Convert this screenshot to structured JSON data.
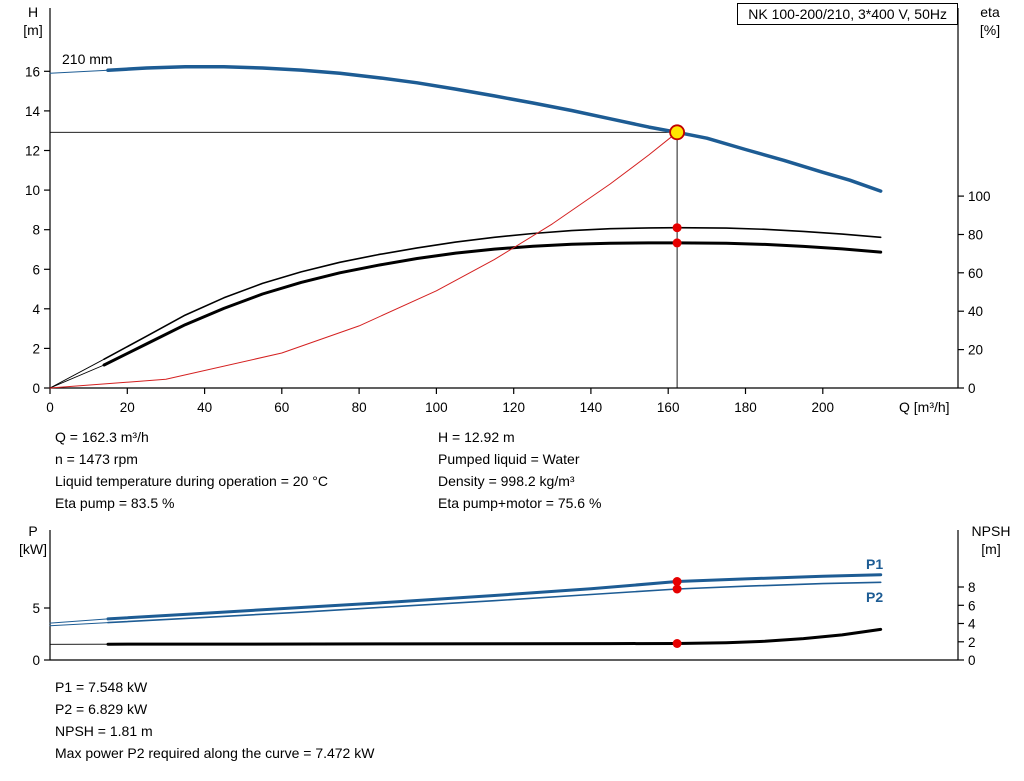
{
  "header": {
    "title_box": "NK 100-200/210, 3*400 V, 50Hz"
  },
  "colors": {
    "curve_blue": "#1d5c94",
    "curve_black": "#000000",
    "curve_red": "#d42020",
    "dot_red": "#e60000",
    "duty_fill": "#ffe600",
    "duty_stroke": "#c00000"
  },
  "top_chart": {
    "y_left_title": "H",
    "y_left_unit": "[m]",
    "y_right_title": "eta",
    "y_right_unit": "[%]",
    "x_title": "Q [m³/h]",
    "impeller_label": "210 mm"
  },
  "bottom_chart": {
    "y_left_title": "P",
    "y_left_unit": "[kW]",
    "y_right_title": "NPSH",
    "y_right_unit": "[m]",
    "p1_label": "P1",
    "p2_label": "P2"
  },
  "operating_info": {
    "left": [
      "Q = 162.3 m³/h",
      "n = 1473 rpm",
      "Liquid temperature during operation = 20 °C",
      "Eta pump = 83.5 %"
    ],
    "right": [
      "H = 12.92 m",
      "Pumped liquid = Water",
      "Density = 998.2 kg/m³",
      "Eta pump+motor = 75.6 %"
    ]
  },
  "power_info": [
    "P1 = 7.548 kW",
    "P2 = 6.829 kW",
    "NPSH = 1.81 m",
    "Max power P2 required along the curve = 7.472 kW"
  ],
  "chart_data": [
    {
      "type": "line",
      "title": "NK 100-200/210, 3*400 V, 50Hz",
      "xlabel": "Q [m³/h]",
      "ylabel_left": "H [m]",
      "ylabel_right": "eta [%]",
      "xlim": [
        0,
        235
      ],
      "ylim_left": [
        0,
        19.2
      ],
      "ylim_right": [
        0,
        198
      ],
      "x_ticks": [
        0,
        20,
        40,
        60,
        80,
        100,
        120,
        140,
        160,
        180,
        200
      ],
      "y_ticks_left": [
        0,
        2,
        4,
        6,
        8,
        10,
        12,
        14,
        16
      ],
      "y_ticks_right": [
        0,
        20,
        40,
        60,
        80,
        100
      ],
      "grid": false,
      "crosshair": {
        "q": 162.3,
        "value": 12.92,
        "axis": "left"
      },
      "series": [
        {
          "name": "head-curve-lead",
          "axis": "left",
          "color": "blue",
          "width": 1,
          "points": [
            [
              0,
              15.9
            ],
            [
              15,
              16.05
            ]
          ]
        },
        {
          "name": "head-curve-210mm",
          "axis": "left",
          "color": "blue",
          "width": 3.5,
          "points": [
            [
              15,
              16.05
            ],
            [
              25,
              16.17
            ],
            [
              35,
              16.23
            ],
            [
              45,
              16.23
            ],
            [
              55,
              16.17
            ],
            [
              65,
              16.06
            ],
            [
              75,
              15.9
            ],
            [
              85,
              15.68
            ],
            [
              95,
              15.42
            ],
            [
              105,
              15.1
            ],
            [
              115,
              14.76
            ],
            [
              125,
              14.4
            ],
            [
              135,
              14.02
            ],
            [
              145,
              13.6
            ],
            [
              155,
              13.18
            ],
            [
              162.3,
              12.92
            ],
            [
              170,
              12.62
            ],
            [
              180,
              12.05
            ],
            [
              190,
              11.5
            ],
            [
              200,
              10.9
            ],
            [
              207,
              10.5
            ],
            [
              215,
              9.95
            ]
          ]
        },
        {
          "name": "eta-pump-lead",
          "axis": "right",
          "color": "black",
          "width": 0.9,
          "points": [
            [
              0,
              0
            ],
            [
              14,
              15
            ]
          ]
        },
        {
          "name": "eta-pump-curve",
          "axis": "right",
          "color": "black",
          "width": 1.6,
          "points": [
            [
              14,
              15
            ],
            [
              25,
              27
            ],
            [
              35,
              38
            ],
            [
              45,
              47
            ],
            [
              55,
              54.5
            ],
            [
              65,
              60.5
            ],
            [
              75,
              65.5
            ],
            [
              85,
              69.5
            ],
            [
              95,
              73
            ],
            [
              105,
              76
            ],
            [
              115,
              78.5
            ],
            [
              125,
              80.5
            ],
            [
              135,
              82
            ],
            [
              145,
              83
            ],
            [
              155,
              83.4
            ],
            [
              162.3,
              83.5
            ],
            [
              175,
              83.3
            ],
            [
              185,
              82.7
            ],
            [
              195,
              81.6
            ],
            [
              205,
              80.2
            ],
            [
              215,
              78.5
            ]
          ]
        },
        {
          "name": "eta-pump-motor-lead",
          "axis": "right",
          "color": "black",
          "width": 0.9,
          "points": [
            [
              0,
              0
            ],
            [
              14,
              12
            ]
          ]
        },
        {
          "name": "eta-pump-motor-curve",
          "axis": "right",
          "color": "black",
          "width": 3,
          "points": [
            [
              14,
              12
            ],
            [
              25,
              23
            ],
            [
              35,
              33
            ],
            [
              45,
              41.5
            ],
            [
              55,
              49
            ],
            [
              65,
              55
            ],
            [
              75,
              60
            ],
            [
              85,
              64
            ],
            [
              95,
              67.5
            ],
            [
              105,
              70.3
            ],
            [
              115,
              72.4
            ],
            [
              125,
              73.9
            ],
            [
              135,
              74.9
            ],
            [
              145,
              75.4
            ],
            [
              155,
              75.6
            ],
            [
              162.3,
              75.6
            ],
            [
              175,
              75.4
            ],
            [
              185,
              74.8
            ],
            [
              195,
              73.8
            ],
            [
              205,
              72.5
            ],
            [
              215,
              70.8
            ]
          ]
        },
        {
          "name": "system-curve",
          "axis": "left",
          "color": "red",
          "width": 1,
          "points": [
            [
              0,
              0
            ],
            [
              30,
              0.44
            ],
            [
              60,
              1.77
            ],
            [
              80,
              3.14
            ],
            [
              100,
              4.91
            ],
            [
              115,
              6.49
            ],
            [
              130,
              8.29
            ],
            [
              145,
              10.31
            ],
            [
              155,
              11.78
            ],
            [
              162.3,
              12.92
            ]
          ]
        }
      ],
      "markers": [
        {
          "name": "duty-point",
          "style": "duty",
          "axis": "left",
          "q": 162.3,
          "value": 12.92
        },
        {
          "name": "eta-pump-point",
          "style": "dot",
          "axis": "right",
          "q": 162.3,
          "value": 83.5
        },
        {
          "name": "eta-pump-motor-point",
          "style": "dot",
          "axis": "right",
          "q": 162.3,
          "value": 75.6
        }
      ]
    },
    {
      "type": "line",
      "title": "Power and NPSH curves",
      "xlabel": "Q [m³/h]",
      "ylabel_left": "P [kW]",
      "ylabel_right": "NPSH [m]",
      "xlim": [
        0,
        235
      ],
      "ylim_left": [
        0,
        12.5
      ],
      "ylim_right": [
        0,
        14.25
      ],
      "x_ticks": [],
      "y_ticks_left": [
        0,
        5
      ],
      "y_ticks_right": [
        0,
        2,
        4,
        6,
        8
      ],
      "grid": false,
      "crosshair": null,
      "series": [
        {
          "name": "p1-curve-lead",
          "axis": "left",
          "color": "blue",
          "width": 1,
          "points": [
            [
              0,
              3.55
            ],
            [
              15,
              3.95
            ]
          ]
        },
        {
          "name": "p1-curve",
          "axis": "left",
          "color": "blue",
          "width": 3,
          "points": [
            [
              15,
              3.95
            ],
            [
              40,
              4.5
            ],
            [
              65,
              5.05
            ],
            [
              90,
              5.6
            ],
            [
              115,
              6.2
            ],
            [
              140,
              6.85
            ],
            [
              162.3,
              7.548
            ],
            [
              180,
              7.8
            ],
            [
              200,
              8.05
            ],
            [
              215,
              8.2
            ]
          ]
        },
        {
          "name": "p2-curve-lead",
          "axis": "left",
          "color": "blue",
          "width": 1,
          "points": [
            [
              0,
              3.3
            ],
            [
              15,
              3.6
            ]
          ]
        },
        {
          "name": "p2-curve",
          "axis": "left",
          "color": "blue",
          "width": 1.6,
          "points": [
            [
              15,
              3.6
            ],
            [
              40,
              4.1
            ],
            [
              65,
              4.6
            ],
            [
              90,
              5.15
            ],
            [
              115,
              5.7
            ],
            [
              140,
              6.3
            ],
            [
              162.3,
              6.829
            ],
            [
              180,
              7.1
            ],
            [
              200,
              7.35
            ],
            [
              215,
              7.472
            ]
          ]
        },
        {
          "name": "npsh-curve-lead",
          "axis": "right",
          "color": "black",
          "width": 0.9,
          "points": [
            [
              0,
              1.72
            ],
            [
              15,
              1.73
            ]
          ]
        },
        {
          "name": "npsh-curve",
          "axis": "right",
          "color": "black",
          "width": 3,
          "points": [
            [
              15,
              1.73
            ],
            [
              50,
              1.74
            ],
            [
              90,
              1.76
            ],
            [
              120,
              1.78
            ],
            [
              145,
              1.8
            ],
            [
              162.3,
              1.81
            ],
            [
              175,
              1.9
            ],
            [
              185,
              2.05
            ],
            [
              195,
              2.35
            ],
            [
              205,
              2.75
            ],
            [
              215,
              3.35
            ]
          ]
        }
      ],
      "markers": [
        {
          "name": "p1-point",
          "style": "dot",
          "axis": "left",
          "q": 162.3,
          "value": 7.548
        },
        {
          "name": "p2-point",
          "style": "dot",
          "axis": "left",
          "q": 162.3,
          "value": 6.829
        },
        {
          "name": "npsh-point",
          "style": "dot",
          "axis": "right",
          "q": 162.3,
          "value": 1.81
        }
      ]
    }
  ]
}
